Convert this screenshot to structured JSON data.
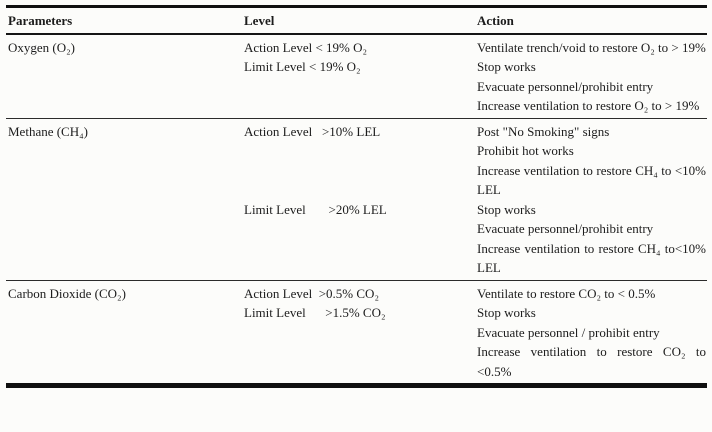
{
  "table": {
    "headers": [
      "Parameters",
      "Level",
      "Action"
    ],
    "sections": [
      {
        "parameter": "Oxygen (O₂)",
        "rows": [
          {
            "level": "Action Level < 19% O₂",
            "actions": [
              "Ventilate trench/void to restore O₂ to > 19%"
            ]
          },
          {
            "level": "Limit Level < 19% O₂",
            "actions": [
              "Stop works",
              "Evacuate personnel/prohibit entry",
              "Increase ventilation to restore O₂ to > 19%"
            ]
          }
        ]
      },
      {
        "parameter": "Methane (CH₄)",
        "rows": [
          {
            "level": "Action Level   >10% LEL",
            "actions": [
              "Post \"No Smoking\" signs",
              "Prohibit hot works",
              "Increase ventilation to restore CH₄ to <10% LEL"
            ]
          },
          {
            "level": "Limit Level       >20% LEL",
            "actions": [
              "Stop works",
              "Evacuate personnel/prohibit entry",
              "Increase ventilation to restore CH₄ to<10% LEL"
            ]
          }
        ]
      },
      {
        "parameter": "Carbon Dioxide (CO₂)",
        "rows": [
          {
            "level": "Action Level  >0.5% CO₂",
            "actions": [
              "Ventilate to restore CO₂ to < 0.5%"
            ]
          },
          {
            "level": "Limit Level      >1.5% CO₂",
            "actions": [
              "Stop works",
              "Evacuate personnel / prohibit entry",
              "Increase ventilation to restore CO₂ to <0.5%"
            ]
          }
        ]
      }
    ]
  }
}
